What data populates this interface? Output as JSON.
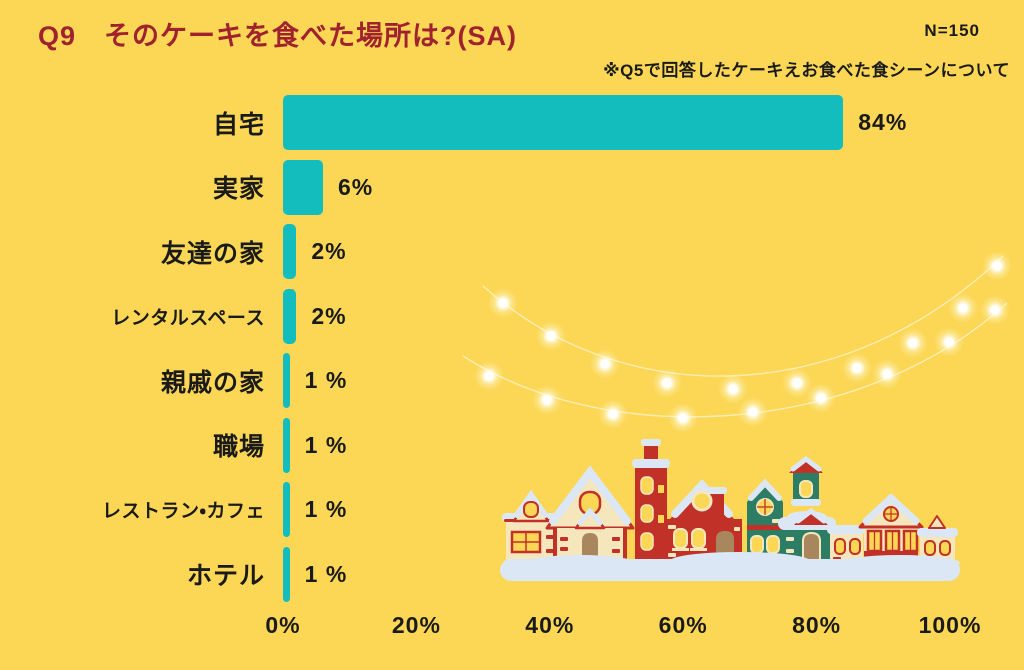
{
  "header": {
    "title": "Q9　そのケーキを食べた場所は?(SA)",
    "sample_size": "N=150",
    "note": "※Q5で回答したケーキえお食べた食シーンについて"
  },
  "chart_data": {
    "type": "bar",
    "orientation": "horizontal",
    "title": "そのケーキを食べた場所は?(SA)",
    "categories": [
      "自宅",
      "実家",
      "友達の家",
      "レンタルスペース",
      "親戚の家",
      "職場",
      "レストラン・カフェ",
      "ホテル"
    ],
    "values": [
      84,
      6,
      2,
      2,
      1,
      1,
      1,
      1
    ],
    "value_labels": [
      "84%",
      "6%",
      "2%",
      "2%",
      "1 %",
      "1 %",
      "1 %",
      "1 %"
    ],
    "x_ticks": [
      "0%",
      "20%",
      "40%",
      "60%",
      "80%",
      "100%"
    ],
    "xlim": [
      0,
      100
    ],
    "grid": false,
    "legend": false,
    "bar_color": "#14BDBD"
  },
  "decorations": {
    "lights": "string-lights-illustration",
    "village": "christmas-village-illustration"
  },
  "colors": {
    "background": "#FBD755",
    "title": "#A0222E",
    "text": "#1A1A1A",
    "bar": "#14BDBD",
    "snow": "#DCE7F5",
    "house_red": "#C23128",
    "house_cream": "#F5E6BC",
    "house_green": "#2D7D64",
    "door_brown": "#A8875F",
    "window_yellow": "#FBD755"
  }
}
